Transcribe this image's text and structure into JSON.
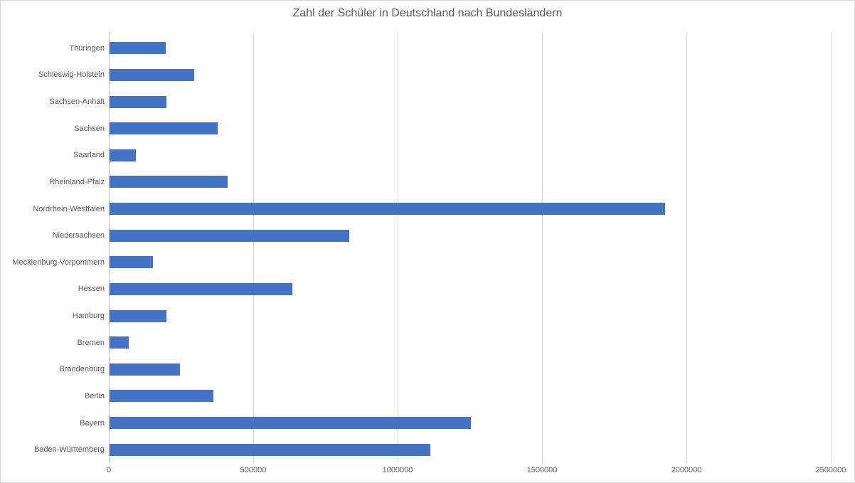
{
  "chart_data": {
    "type": "bar",
    "orientation": "horizontal",
    "title": "Zahl der Schüler in Deutschland nach Bundesländern",
    "xlabel": "",
    "ylabel": "",
    "legend": "none",
    "grid": "vertical",
    "xlim": [
      0,
      2500000
    ],
    "x_ticks": [
      0,
      500000,
      1000000,
      1500000,
      2000000,
      2500000
    ],
    "x_tick_labels": [
      "0",
      "500000",
      "1000000",
      "1500000",
      "2000000",
      "2500000"
    ],
    "categories": [
      "Thüringen",
      "Schleswig-Holstein",
      "Sachsen-Anhalt",
      "Sachsen",
      "Saarland",
      "Rheinland-Pfalz",
      "Nordrhein-Westfalen",
      "Niedersachsen",
      "Mecklenburg-Vorpommern",
      "Hessen",
      "Hamburg",
      "Bremen",
      "Brandenburg",
      "Berlin",
      "Bayern",
      "Baden-Württemberg"
    ],
    "values": [
      197000,
      295000,
      199000,
      377000,
      94000,
      411000,
      1926000,
      833000,
      153000,
      636000,
      199000,
      69000,
      246000,
      362000,
      1254000,
      1113000
    ],
    "bar_color": "#4472c4",
    "gridline_color": "#d9d9d9",
    "axis_line_color": "#bfbfbf",
    "text_color": "#595959",
    "background_color": "#ffffff",
    "border_color": "#d9d9d9"
  }
}
